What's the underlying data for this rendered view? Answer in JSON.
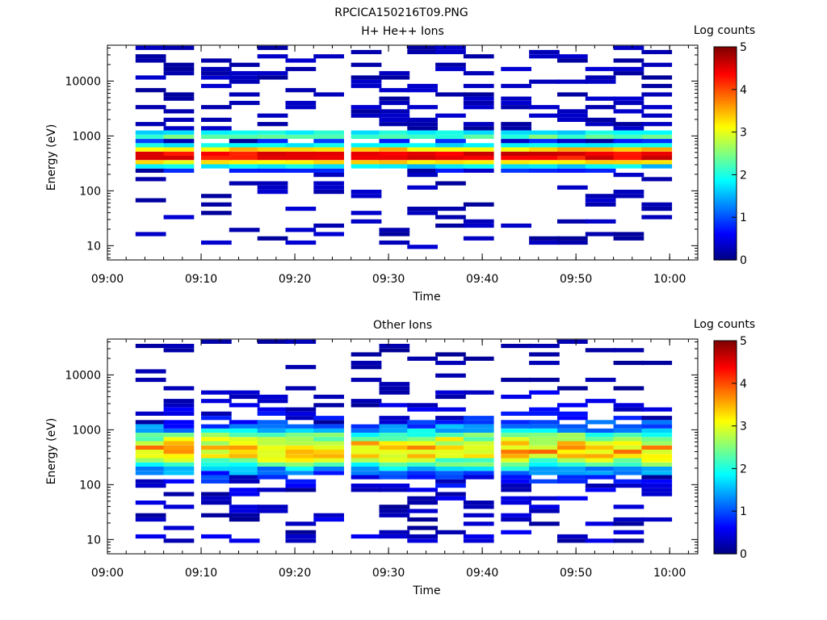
{
  "figure_title": "RPCICA150216T09.PNG",
  "chart_data": [
    {
      "type": "heatmap",
      "title": "H+ He++ Ions",
      "xlabel": "Time",
      "ylabel": "Energy (eV)",
      "x_ticks": [
        "09:00",
        "09:10",
        "09:20",
        "09:30",
        "09:40",
        "09:50",
        "10:00"
      ],
      "y_ticks": [
        "10",
        "100",
        "1000",
        "10000"
      ],
      "xlim": [
        "09:00",
        "10:03"
      ],
      "ylim_ev": [
        5.5,
        45000
      ],
      "y_scale": "log",
      "time_bins_start": [
        "09:03",
        "09:06",
        "09:10",
        "09:13",
        "09:16",
        "09:19",
        "09:22",
        "09:26",
        "09:29",
        "09:32",
        "09:35",
        "09:38",
        "09:42",
        "09:45",
        "09:48",
        "09:51",
        "09:54",
        "09:57"
      ],
      "colorbar": {
        "label": "Log counts",
        "ticks": [
          "0",
          "1",
          "2",
          "3",
          "4",
          "5"
        ],
        "range": [
          0,
          5
        ]
      },
      "peak_energy_ev": 400,
      "peak_log_counts": 4.6,
      "secondary_band_ev": 950,
      "secondary_band_log_counts": 2.8
    },
    {
      "type": "heatmap",
      "title": "Other Ions",
      "xlabel": "Time",
      "ylabel": "Energy (eV)",
      "x_ticks": [
        "09:00",
        "09:10",
        "09:20",
        "09:30",
        "09:40",
        "09:50",
        "10:00"
      ],
      "y_ticks": [
        "10",
        "100",
        "1000",
        "10000"
      ],
      "xlim": [
        "09:00",
        "10:03"
      ],
      "ylim_ev": [
        5.5,
        45000
      ],
      "y_scale": "log",
      "time_bins_start": [
        "09:03",
        "09:06",
        "09:10",
        "09:13",
        "09:16",
        "09:19",
        "09:22",
        "09:26",
        "09:29",
        "09:32",
        "09:35",
        "09:38",
        "09:42",
        "09:45",
        "09:48",
        "09:51",
        "09:54",
        "09:57"
      ],
      "colorbar": {
        "label": "Log counts",
        "ticks": [
          "0",
          "1",
          "2",
          "3",
          "4",
          "5"
        ],
        "range": [
          0,
          5
        ]
      },
      "peak_energy_ev": 400,
      "peak_log_counts": 3.4
    }
  ]
}
